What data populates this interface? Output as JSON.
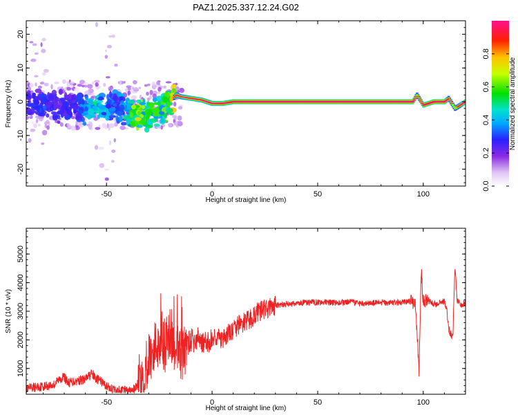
{
  "page_title": "PAZ1.2025.337.12.24.G02",
  "chart_data": [
    {
      "type": "heatmap",
      "title": "PAZ1.2025.337.12.24.G02",
      "xlabel": "Height of straight line (km)",
      "ylabel": "Frequency (Hz)",
      "xlim": [
        -88,
        120
      ],
      "ylim": [
        -25,
        24
      ],
      "x_ticks": [
        -50,
        0,
        50,
        100
      ],
      "x_tick_labels": [
        "-50",
        "0",
        "50",
        "100"
      ],
      "y_ticks": [
        -20,
        -10,
        0,
        10,
        20
      ],
      "y_tick_labels": [
        "-20",
        "-10",
        "0",
        "10",
        "20"
      ],
      "colorbar": {
        "label": "Normalized spectral amplitude",
        "range": [
          0,
          1
        ],
        "ticks": [
          0.0,
          0.2,
          0.4,
          0.6,
          0.8
        ],
        "tick_labels": [
          "0.0",
          "0.2",
          "0.4",
          "0.6",
          "0.8"
        ],
        "colormap": "rainbow (white→violet→blue→cyan→green→yellow→red→magenta)"
      },
      "ridge": {
        "x": [
          -88,
          -80,
          -75,
          -70,
          -65,
          -60,
          -55,
          -50,
          -45,
          -40,
          -35,
          -30,
          -25,
          -20,
          -17,
          -15,
          -10,
          -5,
          0,
          5,
          10,
          20,
          40,
          60,
          80,
          95,
          97,
          100,
          105,
          110,
          112,
          115,
          120
        ],
        "y": [
          -1,
          -0.5,
          -1,
          -2,
          -1.5,
          -2,
          -1.5,
          -2,
          -1,
          -3,
          -4,
          -4,
          -2,
          0,
          2,
          1.5,
          1,
          0.5,
          -0.5,
          -0.5,
          0,
          0,
          0,
          0,
          0,
          0,
          2,
          -1,
          0,
          0,
          1,
          -2,
          0
        ],
        "amplitude": [
          0.12,
          0.15,
          0.12,
          0.14,
          0.12,
          0.2,
          0.3,
          0.22,
          0.18,
          0.3,
          0.45,
          0.35,
          0.35,
          0.4,
          0.75,
          0.7,
          0.85,
          0.85,
          0.85,
          0.9,
          0.95,
          1,
          1,
          1,
          1,
          1,
          0.5,
          0.9,
          1,
          1,
          0.6,
          0.5,
          0.9
        ]
      }
    },
    {
      "type": "line",
      "title": "",
      "xlabel": "Height of straight line (km)",
      "ylabel": "SNR (10 * v/v)",
      "xlim": [
        -88,
        120
      ],
      "ylim": [
        100,
        5900
      ],
      "x_ticks": [
        -50,
        0,
        50,
        100
      ],
      "x_tick_labels": [
        "-50",
        "0",
        "50",
        "100"
      ],
      "y_ticks": [
        1000,
        2000,
        3000,
        4000,
        5000
      ],
      "y_tick_labels": [
        "1000",
        "2000",
        "3000",
        "4000",
        "5000"
      ],
      "series": [
        {
          "color": "#ee2222",
          "x": [
            -88,
            -85,
            -80,
            -75,
            -72,
            -70,
            -68,
            -65,
            -60,
            -57,
            -55,
            -52,
            -50,
            -47,
            -45,
            -42,
            -40,
            -38,
            -36,
            -34,
            -32,
            -30,
            -28,
            -26,
            -24,
            -22,
            -20,
            -18,
            -16,
            -14,
            -12,
            -10,
            -8,
            -6,
            -4,
            -2,
            0,
            2,
            5,
            8,
            10,
            12,
            15,
            18,
            20,
            22,
            25,
            28,
            30,
            35,
            40,
            45,
            50,
            55,
            60,
            65,
            70,
            75,
            80,
            85,
            90,
            93,
            95,
            96,
            97,
            98,
            99,
            100,
            102,
            104,
            106,
            108,
            110,
            111,
            112,
            113,
            114,
            115,
            116,
            118,
            120
          ],
          "y": [
            250,
            330,
            380,
            430,
            650,
            700,
            500,
            560,
            620,
            820,
            650,
            520,
            380,
            260,
            230,
            230,
            200,
            240,
            330,
            620,
            1000,
            1350,
            1600,
            1900,
            2100,
            1750,
            2300,
            1900,
            1700,
            1450,
            1800,
            2000,
            1900,
            2100,
            1850,
            1900,
            2000,
            2150,
            1950,
            2250,
            2300,
            2500,
            2600,
            2700,
            2850,
            3000,
            3050,
            3150,
            3200,
            3250,
            3280,
            3300,
            3320,
            3300,
            3300,
            3320,
            3280,
            3280,
            3300,
            3300,
            3300,
            3350,
            3300,
            3350,
            2400,
            900,
            4500,
            3300,
            3400,
            3300,
            3250,
            3300,
            3350,
            3150,
            2400,
            2200,
            2100,
            4600,
            3400,
            3250,
            3300
          ]
        }
      ]
    }
  ]
}
